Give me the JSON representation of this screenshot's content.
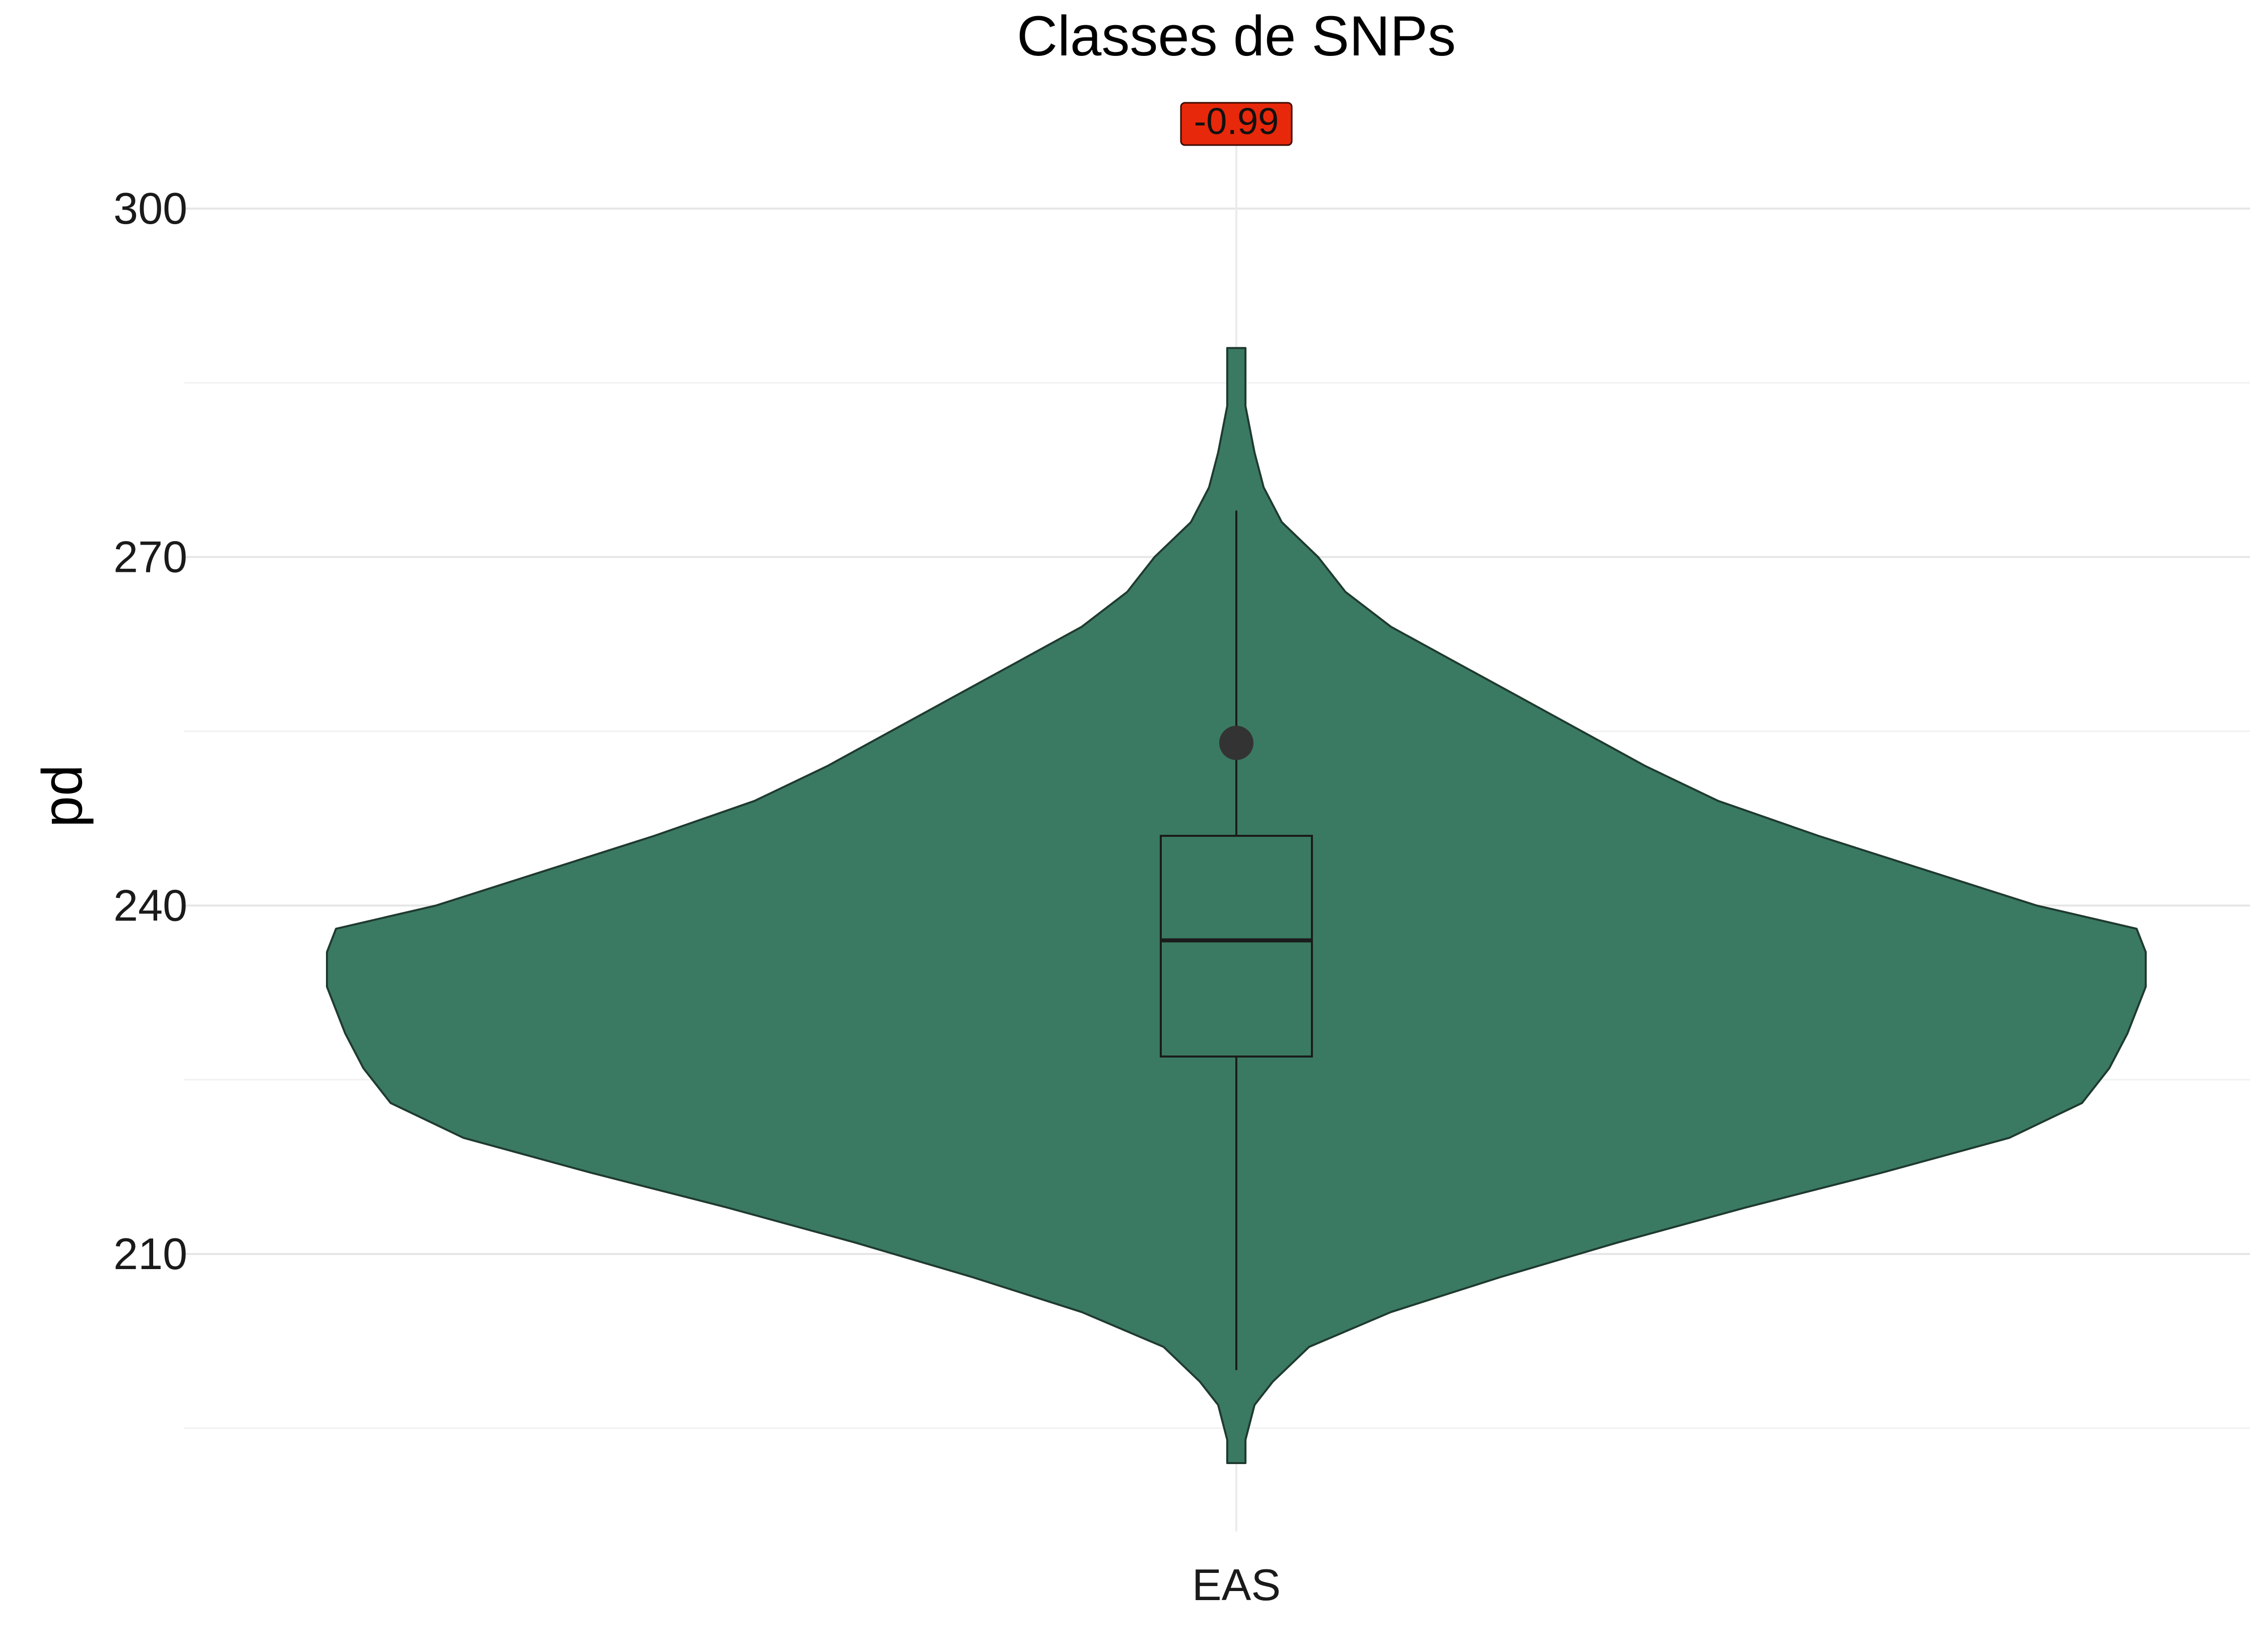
{
  "chart_data": {
    "type": "violin",
    "title": "Classes de SNPs",
    "xlabel": "",
    "ylabel": "pd",
    "categories": [
      "EAS"
    ],
    "y_ticks": [
      210,
      240,
      270,
      300
    ],
    "ylim": [
      189,
      312
    ],
    "grid": true,
    "annotation": {
      "text": "-0.99",
      "color": "#e8280a"
    },
    "violin_color": "#3a7a62",
    "violin": {
      "category": "EAS",
      "min": 192,
      "max": 288,
      "density_profile": [
        [
          192,
          0.01
        ],
        [
          194,
          0.01
        ],
        [
          197,
          0.02
        ],
        [
          199,
          0.04
        ],
        [
          202,
          0.08
        ],
        [
          205,
          0.17
        ],
        [
          208,
          0.29
        ],
        [
          211,
          0.42
        ],
        [
          214,
          0.56
        ],
        [
          217,
          0.71
        ],
        [
          220,
          0.85
        ],
        [
          223,
          0.93
        ],
        [
          226,
          0.96
        ],
        [
          229,
          0.98
        ],
        [
          233,
          1.0
        ],
        [
          236,
          1.0
        ],
        [
          238,
          0.99
        ],
        [
          240,
          0.88
        ],
        [
          243,
          0.76
        ],
        [
          246,
          0.64
        ],
        [
          249,
          0.53
        ],
        [
          252,
          0.45
        ],
        [
          255,
          0.38
        ],
        [
          258,
          0.31
        ],
        [
          261,
          0.24
        ],
        [
          264,
          0.17
        ],
        [
          267,
          0.12
        ],
        [
          270,
          0.09
        ],
        [
          273,
          0.05
        ],
        [
          276,
          0.03
        ],
        [
          279,
          0.02
        ],
        [
          283,
          0.01
        ],
        [
          288,
          0.01
        ]
      ]
    },
    "boxplot": {
      "category": "EAS",
      "whisker_low": 200,
      "q1": 227,
      "median": 237,
      "q3": 246,
      "whisker_high": 274,
      "outliers": [
        254
      ]
    }
  }
}
